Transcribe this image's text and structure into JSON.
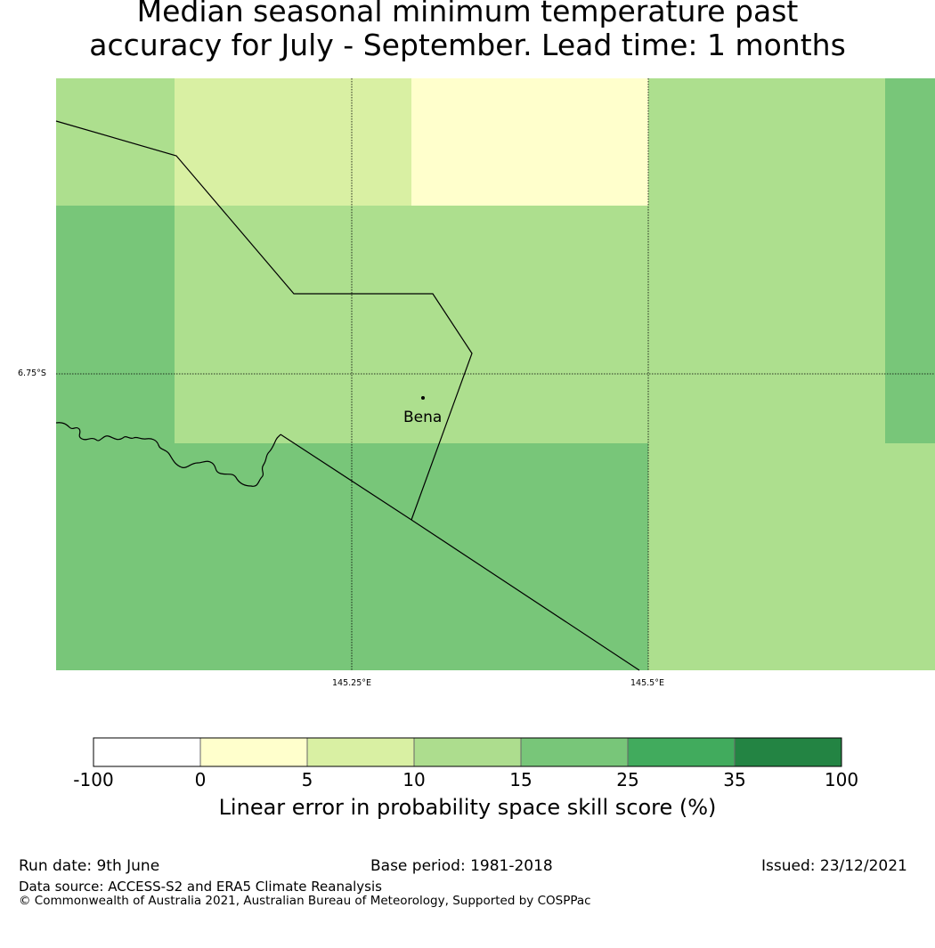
{
  "title_line1": "Median seasonal minimum temperature past",
  "title_line2": "accuracy for July - September. Lead time: 1 months",
  "map": {
    "lat_label": "6.75°S",
    "lon_labels": [
      "145.25°E",
      "145.5°E"
    ],
    "place": "Bena",
    "grid_colors": [
      "#addf8e",
      "#d9f0a3",
      "#ffffcc",
      "#78c679"
    ]
  },
  "colorbar": {
    "title": "Linear error in probability space skill score (%)",
    "boundaries": [
      "-100",
      "0",
      "5",
      "10",
      "15",
      "25",
      "35",
      "100"
    ],
    "colors": [
      "#ffffff",
      "#ffffcc",
      "#d9f0a3",
      "#addd8e",
      "#78c679",
      "#41ab5d",
      "#238443"
    ]
  },
  "footer": {
    "run_date": "Run date: 9th June",
    "base_period": "Base period: 1981-2018",
    "issued": "Issued: 23/12/2021",
    "data_source": "Data source: ACCESS-S2 and ERA5 Climate Reanalysis",
    "copyright": "© Commonwealth of Australia 2021, Australian Bureau of Meteorology, Supported by COSPPac"
  }
}
